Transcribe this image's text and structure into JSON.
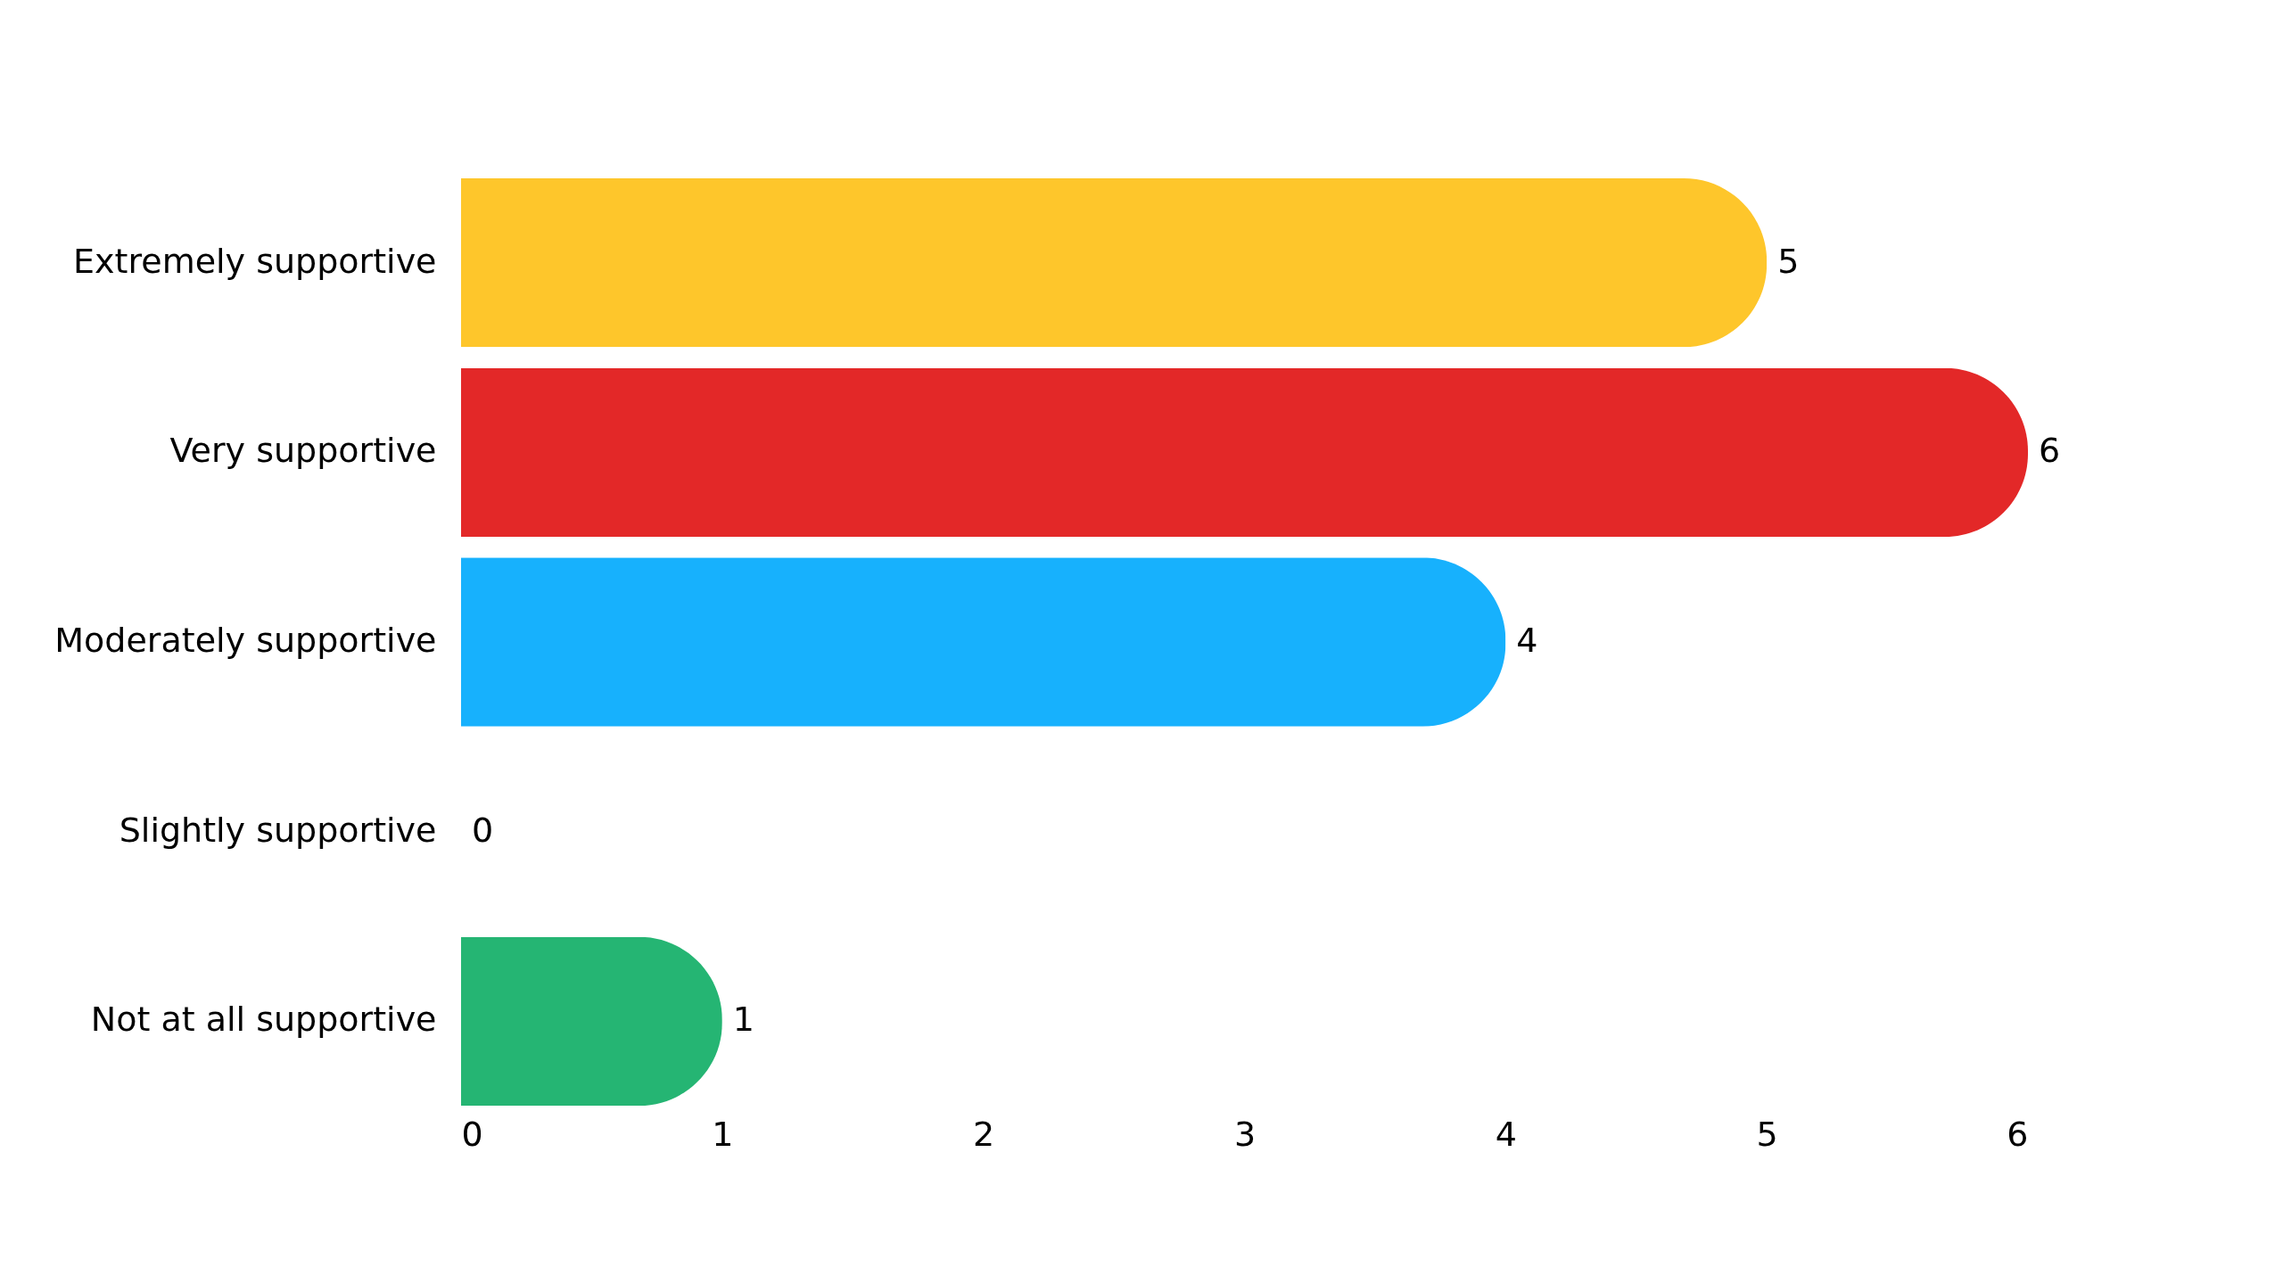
{
  "chart_data": {
    "type": "bar",
    "orientation": "horizontal",
    "categories": [
      "Extremely supportive",
      "Very supportive",
      "Moderately supportive",
      "Slightly supportive",
      "Not at all supportive"
    ],
    "values": [
      5,
      6,
      4,
      0,
      1
    ],
    "colors": [
      "#fec62b",
      "#e32828",
      "#17b1fd",
      "#9b59b6",
      "#25b573"
    ],
    "xlim": [
      0,
      6
    ],
    "xticks": [
      0,
      1,
      2,
      3,
      4,
      5,
      6
    ],
    "data_labels": true,
    "grid": false
  }
}
